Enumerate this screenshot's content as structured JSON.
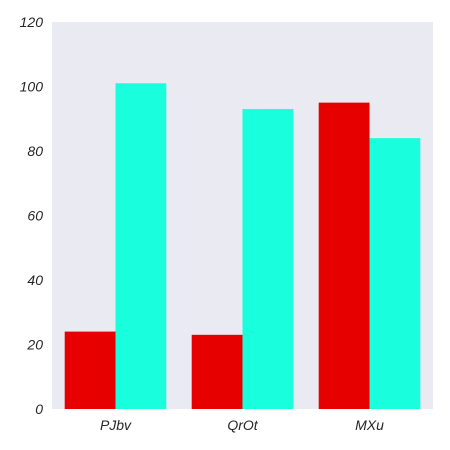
{
  "chart_data": {
    "type": "bar",
    "categories": [
      "PJbv",
      "QrOt",
      "MXu"
    ],
    "series": [
      {
        "values": [
          24,
          23,
          95
        ],
        "color": "#e60000"
      },
      {
        "values": [
          101,
          93,
          84
        ],
        "color": "#19ffdd"
      }
    ],
    "ylim": [
      0,
      120
    ],
    "yticks": [
      0,
      20,
      40,
      60,
      80,
      100,
      120
    ],
    "grid": false,
    "background": "#eaeaf2",
    "title": "",
    "xlabel": "",
    "ylabel": ""
  }
}
